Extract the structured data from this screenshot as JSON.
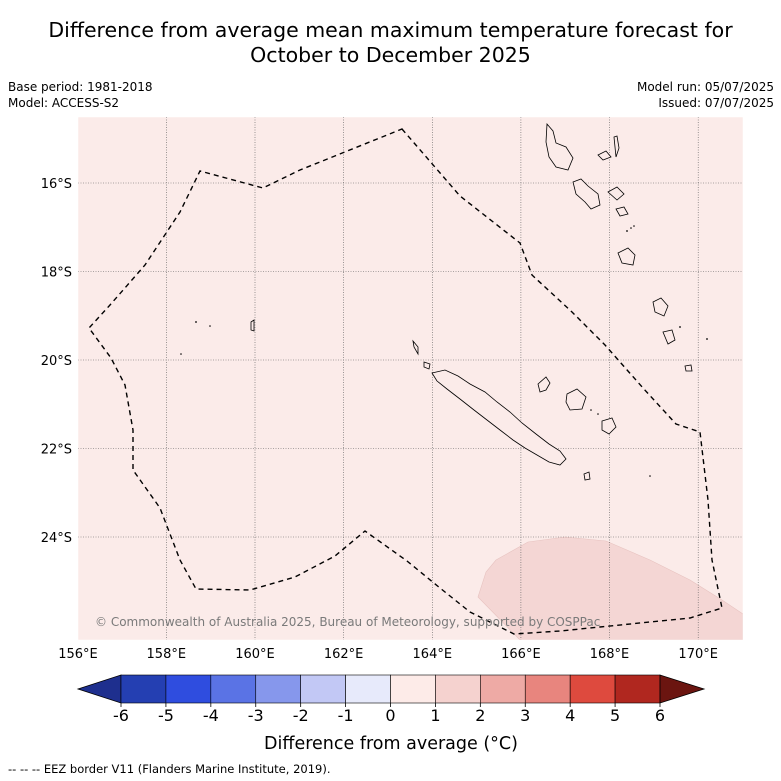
{
  "header": {
    "title_line1": "Difference from average mean maximum temperature forecast for",
    "title_line2": "October to December 2025",
    "base_period": "Base period: 1981-2018",
    "model": "Model: ACCESS-S2",
    "model_run": "Model run: 05/07/2025",
    "issued": "Issued: 07/07/2025"
  },
  "map": {
    "lat_labels": [
      "16°S",
      "18°S",
      "20°S",
      "22°S",
      "24°S"
    ],
    "lon_labels": [
      "156°E",
      "158°E",
      "160°E",
      "162°E",
      "164°E",
      "166°E",
      "168°E",
      "170°E"
    ],
    "background_anomaly_color": "#fbebe9",
    "warm_patch_color": "#f4d6d4",
    "credit": "© Commonwealth of Australia 2025, Bureau of Meteorology, supported by COSPPac"
  },
  "colorbar": {
    "ticks": [
      "-6",
      "-5",
      "-4",
      "-3",
      "-2",
      "-1",
      "0",
      "1",
      "2",
      "3",
      "4",
      "5",
      "6"
    ],
    "colors": [
      "#1e2f8e",
      "#243fb2",
      "#2f4ddf",
      "#5a73e5",
      "#8697ec",
      "#c2c8f5",
      "#e7eafb",
      "#fdebe8",
      "#f5d2cf",
      "#eeaaa5",
      "#e8857e",
      "#de4a3e",
      "#b0271f",
      "#6b1510"
    ],
    "label": "Difference from average (°C)"
  },
  "legend": {
    "eez": "--  --  -- EEZ border V11 (Flanders Marine Institute, 2019)."
  }
}
